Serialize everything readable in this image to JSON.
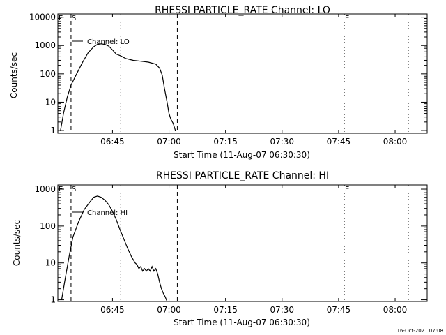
{
  "footer": {
    "timestamp": "16-Oct-2021 07:08"
  },
  "colors": {
    "background": "#ffffff",
    "foreground": "#000000"
  },
  "chart_data": [
    {
      "type": "line",
      "title": "RHESSI PARTICLE_RATE Channel: LO",
      "xlabel": "Start Time (11-Aug-07 06:30:30)",
      "ylabel": "Counts/sec",
      "x_unit": "minutes since 06:30:30",
      "xlim": [
        0,
        98
      ],
      "x_ticks": [
        {
          "x": 14.5,
          "label": "06:45"
        },
        {
          "x": 29.5,
          "label": "07:00"
        },
        {
          "x": 44.5,
          "label": "07:15"
        },
        {
          "x": 59.5,
          "label": "07:30"
        },
        {
          "x": 74.5,
          "label": "07:45"
        },
        {
          "x": 89.5,
          "label": "08:00"
        }
      ],
      "y_scale": "log",
      "ylim": [
        0.8,
        13000
      ],
      "y_ticks": [
        {
          "y": 1,
          "label": "1"
        },
        {
          "y": 10,
          "label": "10"
        },
        {
          "y": 100,
          "label": "100"
        },
        {
          "y": 1000,
          "label": "1000"
        },
        {
          "y": 10000,
          "label": "10000"
        }
      ],
      "grid": false,
      "legend": "top-left",
      "markers": [
        {
          "x": 0,
          "label": "E",
          "style": "edge"
        },
        {
          "x": 3.5,
          "label": "S",
          "style": "dashed"
        },
        {
          "x": 16.7,
          "label": "",
          "style": "dotted"
        },
        {
          "x": 31.7,
          "label": "",
          "style": "dashed"
        },
        {
          "x": 76.0,
          "label": "E",
          "style": "dotted"
        },
        {
          "x": 93.0,
          "label": "",
          "style": "dotted"
        }
      ],
      "series": [
        {
          "name": "Channel: LO",
          "x": [
            0.7,
            1.5,
            2.5,
            3.5,
            5.0,
            6.5,
            8.0,
            9.5,
            10.5,
            11.5,
            12.5,
            13.5,
            14.5,
            15.5,
            16.7,
            18.0,
            20.0,
            22.0,
            24.0,
            26.0,
            27.0,
            27.7,
            28.3,
            29.0,
            29.5,
            30.0,
            30.6,
            31.2
          ],
          "y": [
            1.0,
            4.0,
            15,
            40,
            100,
            250,
            550,
            900,
            1100,
            1150,
            1100,
            950,
            700,
            500,
            430,
            350,
            300,
            280,
            260,
            220,
            160,
            90,
            30,
            10,
            4,
            2.5,
            1.8,
            1.0
          ]
        }
      ]
    },
    {
      "type": "line",
      "title": "RHESSI PARTICLE_RATE Channel: HI",
      "xlabel": "Start Time (11-Aug-07 06:30:30)",
      "ylabel": "Counts/sec",
      "x_unit": "minutes since 06:30:30",
      "xlim": [
        0,
        98
      ],
      "x_ticks": [
        {
          "x": 14.5,
          "label": "06:45"
        },
        {
          "x": 29.5,
          "label": "07:00"
        },
        {
          "x": 44.5,
          "label": "07:15"
        },
        {
          "x": 59.5,
          "label": "07:30"
        },
        {
          "x": 74.5,
          "label": "07:45"
        },
        {
          "x": 89.5,
          "label": "08:00"
        }
      ],
      "y_scale": "log",
      "ylim": [
        0.9,
        1300
      ],
      "y_ticks": [
        {
          "y": 1,
          "label": "1"
        },
        {
          "y": 10,
          "label": "10"
        },
        {
          "y": 100,
          "label": "100"
        },
        {
          "y": 1000,
          "label": "1000"
        }
      ],
      "grid": false,
      "legend": "top-left",
      "markers": [
        {
          "x": 0,
          "label": "E",
          "style": "edge"
        },
        {
          "x": 3.5,
          "label": "S",
          "style": "dashed"
        },
        {
          "x": 16.7,
          "label": "",
          "style": "dotted"
        },
        {
          "x": 31.7,
          "label": "",
          "style": "dashed"
        },
        {
          "x": 76.0,
          "label": "E",
          "style": "dotted"
        },
        {
          "x": 93.0,
          "label": "",
          "style": "dotted"
        }
      ],
      "series": [
        {
          "name": "Channel: HI",
          "x": [
            1.0,
            2.0,
            3.0,
            4.0,
            5.5,
            7.0,
            8.5,
            9.5,
            10.5,
            11.5,
            12.5,
            13.5,
            14.5,
            15.5,
            16.5,
            17.5,
            18.5,
            19.5,
            20.5,
            21.0,
            21.5,
            22.0,
            22.5,
            23.0,
            23.5,
            24.0,
            24.5,
            25.0,
            25.5,
            26.0,
            26.5,
            27.0,
            27.5,
            28.0,
            28.5,
            29.0
          ],
          "y": [
            1.0,
            4.0,
            15,
            50,
            130,
            280,
            450,
            600,
            650,
            600,
            500,
            380,
            250,
            150,
            80,
            45,
            25,
            15,
            10,
            9,
            7,
            8,
            6,
            7,
            6,
            7,
            6,
            8,
            6,
            7,
            5,
            3,
            2,
            1.5,
            1.2,
            0.9
          ]
        }
      ]
    }
  ]
}
